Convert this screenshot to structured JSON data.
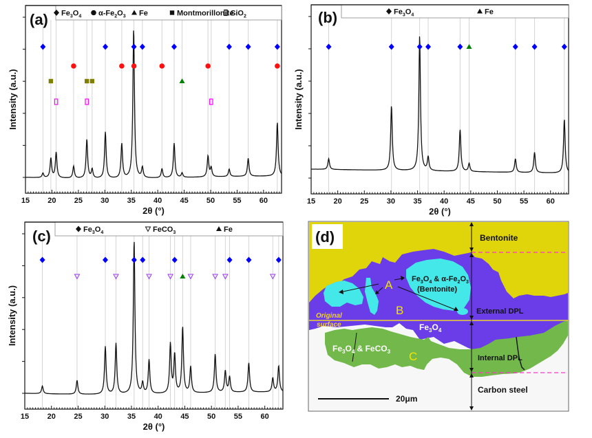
{
  "chart_data": [
    {
      "id": "a",
      "type": "line",
      "panel_label": "(a)",
      "xlabel": "2θ (°)",
      "ylabel": "Intensity (a.u.)",
      "xlim": [
        15,
        63.4
      ],
      "xticks": [
        15,
        20,
        25,
        30,
        35,
        40,
        45,
        50,
        55,
        60
      ],
      "yticks_shown": false,
      "legend": [
        {
          "symbol": "diamond",
          "label": "Fe3O4",
          "label_html": [
            "Fe",
            "3",
            "O",
            "4"
          ]
        },
        {
          "symbol": "circle",
          "label": "α-Fe2O3",
          "label_html": [
            "α-Fe",
            "2",
            "O",
            "3"
          ]
        },
        {
          "symbol": "triangle",
          "label": "Fe",
          "label_html": [
            "Fe"
          ]
        },
        {
          "symbol": "square",
          "label": "Montmorillonite",
          "label_html": [
            "Montmorillonite"
          ]
        },
        {
          "symbol": "open-rect",
          "label": "SiO2",
          "label_html": [
            "SiO",
            "2"
          ]
        }
      ],
      "legend_placement": "top",
      "baseline": 0.1,
      "peaks": [
        {
          "x": 18.3,
          "h": 0.03
        },
        {
          "x": 19.8,
          "h": 0.13
        },
        {
          "x": 20.8,
          "h": 0.17
        },
        {
          "x": 24.1,
          "h": 0.08
        },
        {
          "x": 26.6,
          "h": 0.26
        },
        {
          "x": 27.6,
          "h": 0.06
        },
        {
          "x": 30.1,
          "h": 0.31
        },
        {
          "x": 33.2,
          "h": 0.23
        },
        {
          "x": 35.45,
          "h": 1.0
        },
        {
          "x": 37.1,
          "h": 0.07
        },
        {
          "x": 40.8,
          "h": 0.06
        },
        {
          "x": 43.1,
          "h": 0.23
        },
        {
          "x": 44.6,
          "h": 0.03
        },
        {
          "x": 49.5,
          "h": 0.14
        },
        {
          "x": 50.1,
          "h": 0.06
        },
        {
          "x": 53.5,
          "h": 0.05
        },
        {
          "x": 57.1,
          "h": 0.12
        },
        {
          "x": 62.6,
          "h": 0.36
        }
      ],
      "markers": [
        {
          "phase": "Fe3O4",
          "symbol": "diamond",
          "color": "#0000ff",
          "row": 0,
          "x": [
            18.3,
            30.1,
            35.5,
            37.1,
            43.1,
            53.5,
            57.1,
            62.6
          ]
        },
        {
          "phase": "α-Fe2O3",
          "symbol": "circle",
          "color": "#ff1010",
          "row": 1,
          "x": [
            24.1,
            33.2,
            35.5,
            40.8,
            49.5,
            62.6
          ]
        },
        {
          "phase": "Fe",
          "symbol": "triangle",
          "color": "#008000",
          "row": 2,
          "x": [
            44.6
          ]
        },
        {
          "phase": "Montmorillonite",
          "symbol": "square",
          "color": "#808000",
          "row": 2,
          "x": [
            19.8,
            26.6,
            27.6
          ]
        },
        {
          "phase": "SiO2",
          "symbol": "open-rect",
          "color": "#ff00ff",
          "row": 3,
          "x": [
            20.8,
            26.6,
            50.1
          ]
        }
      ]
    },
    {
      "id": "b",
      "type": "line",
      "panel_label": "(b)",
      "xlabel": "2θ (°)",
      "ylabel": "Intensity (a.u.)",
      "xlim": [
        15,
        63.4
      ],
      "xticks": [
        15,
        20,
        25,
        30,
        35,
        40,
        45,
        50,
        55,
        60
      ],
      "yticks_shown": false,
      "legend": [
        {
          "symbol": "diamond",
          "label": "Fe3O4",
          "label_html": [
            "Fe",
            "3",
            "O",
            "4"
          ]
        },
        {
          "symbol": "triangle",
          "label": "Fe",
          "label_html": [
            "Fe"
          ]
        }
      ],
      "legend_placement": "top",
      "baseline": 0.12,
      "peaks": [
        {
          "x": 18.3,
          "h": 0.08
        },
        {
          "x": 30.1,
          "h": 0.48
        },
        {
          "x": 35.4,
          "h": 1.0
        },
        {
          "x": 37.0,
          "h": 0.1
        },
        {
          "x": 43.0,
          "h": 0.31
        },
        {
          "x": 44.7,
          "h": 0.06
        },
        {
          "x": 53.4,
          "h": 0.1
        },
        {
          "x": 57.0,
          "h": 0.15
        },
        {
          "x": 62.6,
          "h": 0.4
        }
      ],
      "markers": [
        {
          "phase": "Fe3O4",
          "symbol": "diamond",
          "color": "#0000ff",
          "row": 0,
          "x": [
            18.3,
            30.1,
            35.4,
            37.0,
            43.0,
            53.4,
            57.0,
            62.6
          ]
        },
        {
          "phase": "Fe",
          "symbol": "triangle",
          "color": "#008000",
          "row": 0,
          "x": [
            44.7
          ]
        }
      ]
    },
    {
      "id": "c",
      "type": "line",
      "panel_label": "(c)",
      "xlabel": "2θ (°)",
      "ylabel": "Intensity (a.u.)",
      "xlim": [
        15,
        63.4
      ],
      "xticks": [
        15,
        20,
        25,
        30,
        35,
        40,
        45,
        50,
        55,
        60
      ],
      "yticks_shown": false,
      "legend": [
        {
          "symbol": "diamond",
          "label": "Fe3O4",
          "label_html": [
            "Fe",
            "3",
            "O",
            "4"
          ]
        },
        {
          "symbol": "open-down-triangle",
          "label": "FeCO3",
          "label_html": [
            "FeCO",
            "3"
          ]
        },
        {
          "symbol": "triangle",
          "label": "Fe",
          "label_html": [
            "Fe"
          ]
        }
      ],
      "legend_placement": "top",
      "baseline": 0.1,
      "peaks": [
        {
          "x": 18.3,
          "h": 0.05
        },
        {
          "x": 24.8,
          "h": 0.09
        },
        {
          "x": 30.1,
          "h": 0.31
        },
        {
          "x": 32.1,
          "h": 0.33
        },
        {
          "x": 35.5,
          "h": 1.0
        },
        {
          "x": 37.1,
          "h": 0.07
        },
        {
          "x": 38.3,
          "h": 0.22
        },
        {
          "x": 42.3,
          "h": 0.32
        },
        {
          "x": 43.1,
          "h": 0.25
        },
        {
          "x": 44.6,
          "h": 0.43
        },
        {
          "x": 46.1,
          "h": 0.17
        },
        {
          "x": 50.7,
          "h": 0.25
        },
        {
          "x": 52.6,
          "h": 0.14
        },
        {
          "x": 53.4,
          "h": 0.1
        },
        {
          "x": 57.0,
          "h": 0.19
        },
        {
          "x": 61.5,
          "h": 0.09
        },
        {
          "x": 62.6,
          "h": 0.17
        }
      ],
      "markers": [
        {
          "phase": "Fe3O4",
          "symbol": "diamond",
          "color": "#0000ff",
          "row": 0,
          "x": [
            18.3,
            30.1,
            35.5,
            37.1,
            43.1,
            53.4,
            57.0,
            62.6
          ]
        },
        {
          "phase": "FeCO3",
          "symbol": "open-down-triangle",
          "color": "#9933ff",
          "row": 1,
          "x": [
            24.8,
            32.1,
            38.3,
            42.3,
            46.1,
            50.7,
            52.6,
            61.5
          ]
        },
        {
          "phase": "Fe",
          "symbol": "triangle",
          "color": "#008000",
          "row": 1,
          "x": [
            44.6
          ]
        }
      ]
    }
  ],
  "panel_d": {
    "panel_label": "(d)",
    "labels": {
      "bentonite": "Bentonite",
      "external_dpl": "External DPL",
      "internal_dpl": "Internal DPL",
      "carbon_steel": "Carbon steel",
      "original_surface_1": "Original",
      "original_surface_2": "surface",
      "letter_a": "A",
      "letter_b": "B",
      "letter_c": "C",
      "scale_bar": "20μm",
      "fe3o4_fe2o3": [
        "Fe",
        "3",
        "O",
        "4",
        " & α-Fe",
        "2",
        "O",
        "3"
      ],
      "bentonite_paren": "(Bentonite)",
      "fe3o4": [
        "Fe",
        "3",
        "O",
        "4"
      ],
      "fe3o4_feco3": [
        "Fe",
        "3",
        "O",
        "4",
        " & FeCO",
        "3"
      ]
    },
    "colors": {
      "bentonite": "#e0d40a",
      "external_dpl": "#6a3de8",
      "bentonite_inclusion": "#45e8e8",
      "internal_dpl": "#72b84a",
      "carbon_steel": "#f7f7f7",
      "original_surface_line": "#f0d230",
      "boundary_dash": "#ff33cc"
    }
  }
}
